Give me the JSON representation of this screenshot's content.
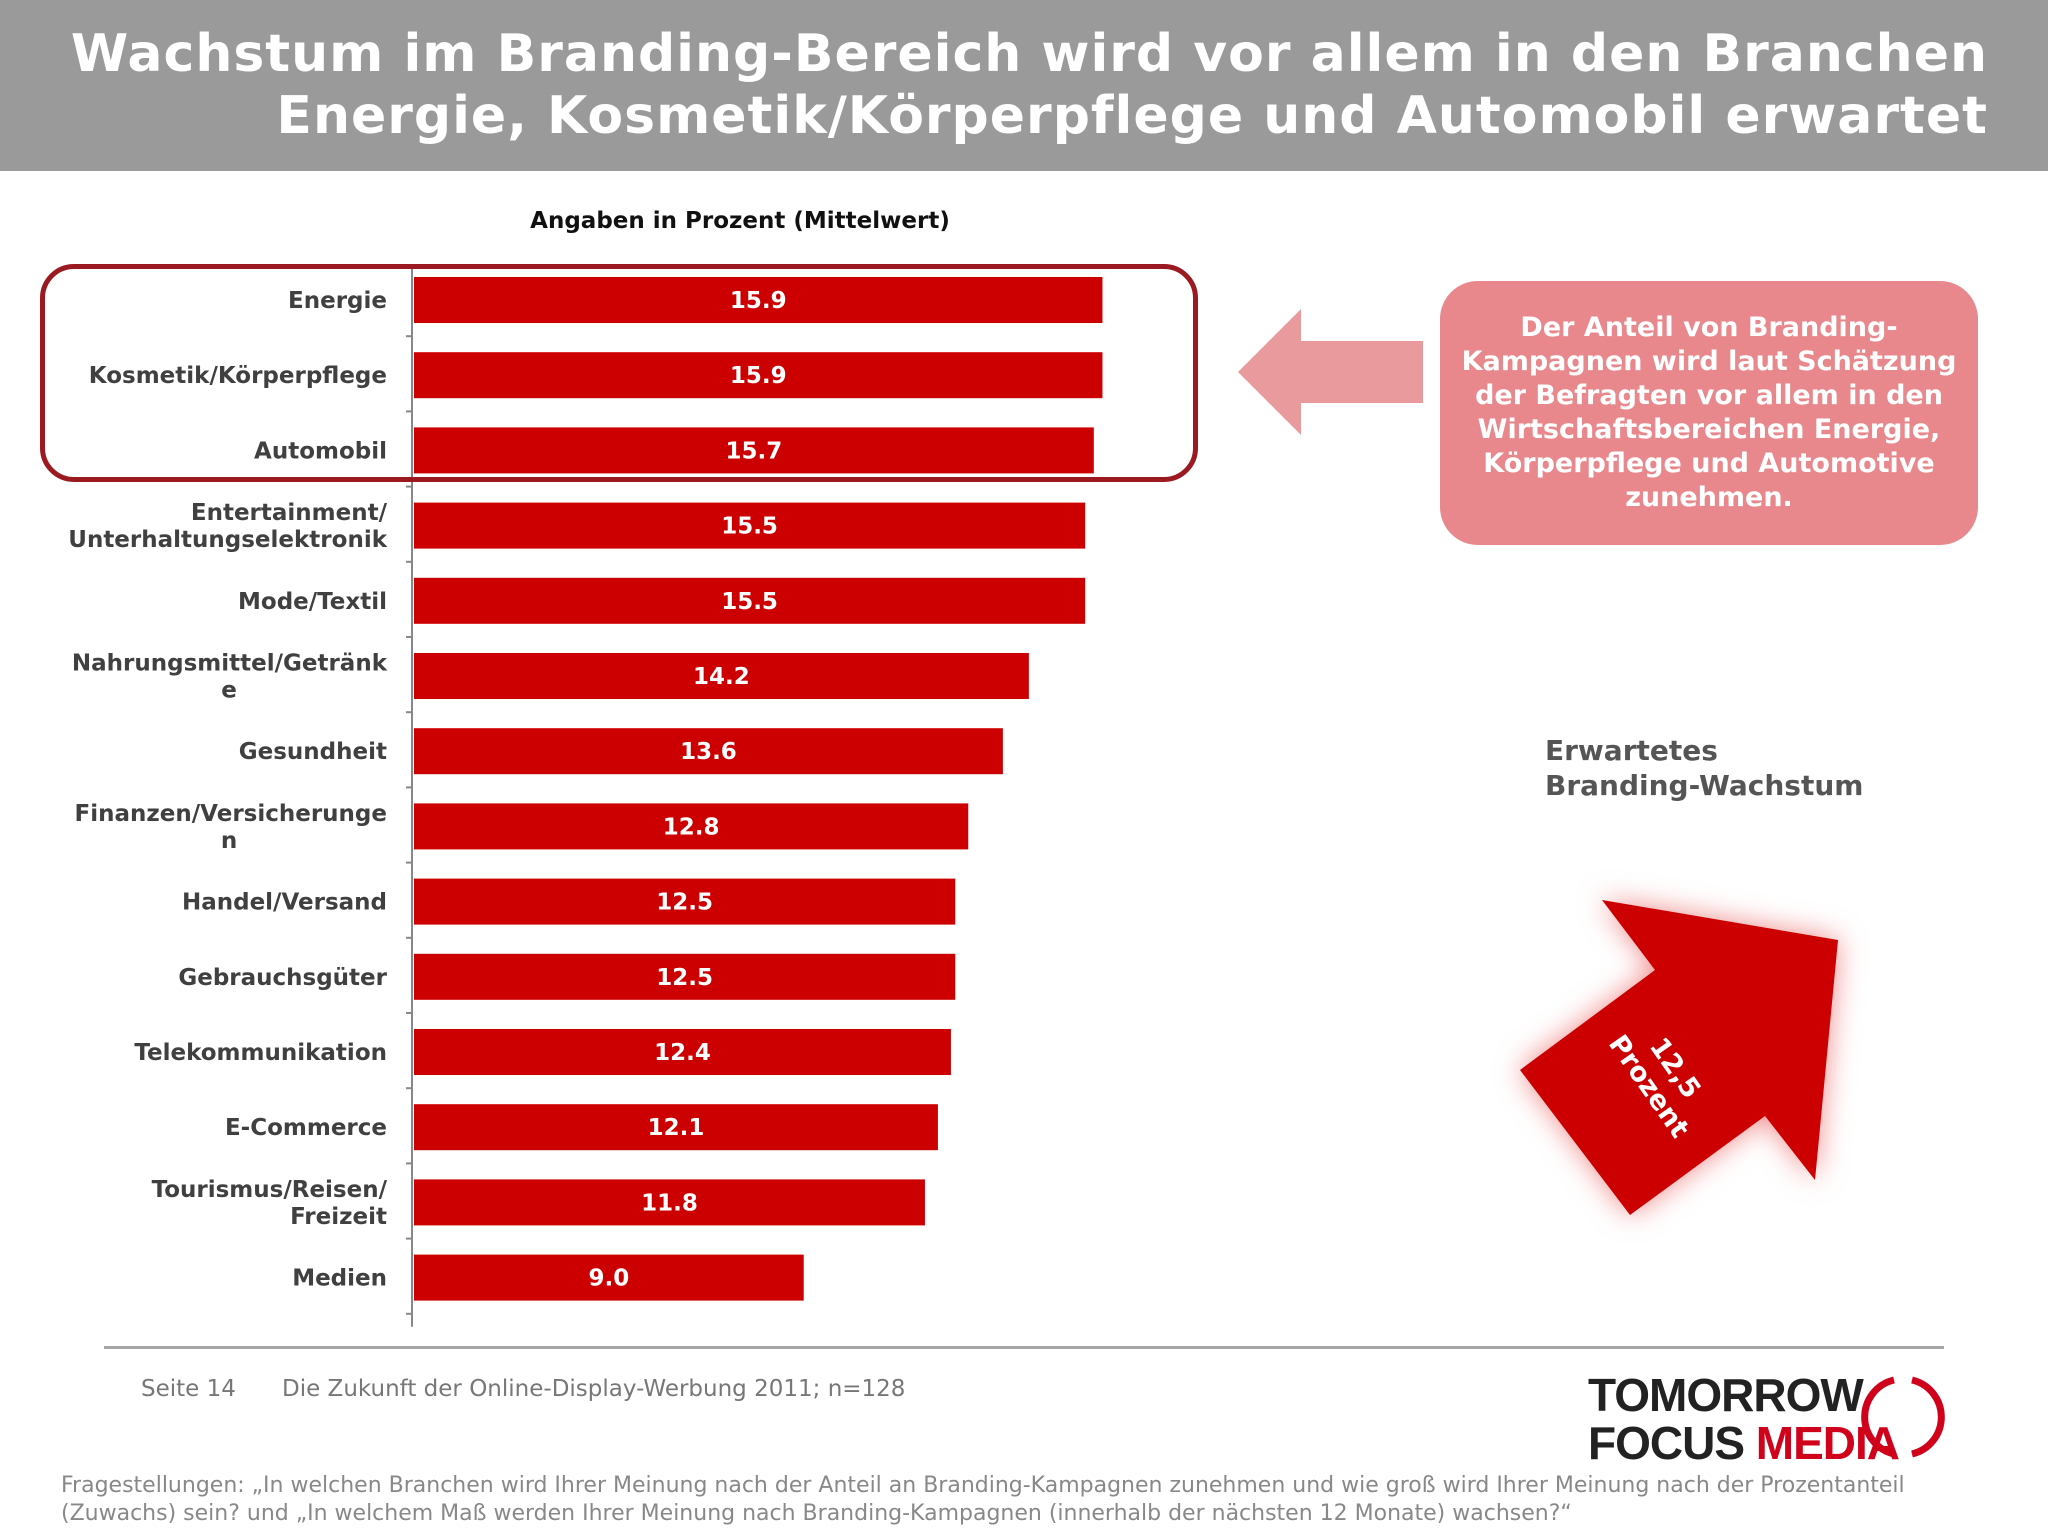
{
  "header": {
    "title_line1": "Wachstum im Branding-Bereich wird vor allem in den Branchen",
    "title_line2": "Energie, Kosmetik/Körperpflege und Automobil erwartet"
  },
  "chart_subtitle": "Angaben in Prozent (Mittelwert)",
  "chart_data": {
    "type": "bar",
    "orientation": "horizontal",
    "subtitle": "Angaben in Prozent (Mittelwert)",
    "categories": [
      [
        "Energie"
      ],
      [
        "Kosmetik/Körperpflege"
      ],
      [
        "Automobil"
      ],
      [
        "Entertainment/",
        "Unterhaltungselektronik"
      ],
      [
        "Mode/Textil"
      ],
      [
        "Nahrungsmittel/Getränk",
        "e"
      ],
      [
        "Gesundheit"
      ],
      [
        "Finanzen/Versicherunge",
        "n"
      ],
      [
        "Handel/Versand"
      ],
      [
        "Gebrauchsgüter"
      ],
      [
        "Telekommunikation"
      ],
      [
        "E-Commerce"
      ],
      [
        "Tourismus/Reisen/",
        "Freizeit"
      ],
      [
        "Medien"
      ]
    ],
    "values": [
      15.9,
      15.9,
      15.7,
      15.5,
      15.5,
      14.2,
      13.6,
      12.8,
      12.5,
      12.5,
      12.4,
      12.1,
      11.8,
      9.0
    ],
    "value_labels": [
      "15.9",
      "15.9",
      "15.7",
      "15.5",
      "15.5",
      "14.2",
      "13.6",
      "12.8",
      "12.5",
      "12.5",
      "12.4",
      "12.1",
      "11.8",
      "9.0"
    ],
    "bar_color": "#cc0000",
    "highlighted": [
      "Energie",
      "Kosmetik/Körperpflege",
      "Automobil"
    ],
    "highlight_color": "#9b1a22",
    "xlim": [
      0,
      16.5
    ],
    "grid": false,
    "legend": "none"
  },
  "callout": {
    "text": "Der Anteil von Branding-Kampagnen wird laut Schätzung der Befragten vor allem in den Wirtschaftsbereichen Energie, Körperpflege und Automotive zunehmen.",
    "bg_color": "#e8888c"
  },
  "growth": {
    "title": "Erwartetes\nBranding-Wachstum",
    "arrow_value": "12,5",
    "arrow_unit": "Prozent",
    "arrow_color": "#cc0000"
  },
  "footer": {
    "page": "Seite 14",
    "source": "Die Zukunft der Online-Display-Werbung 2011; n=128",
    "logo_line1": "TOMORROW",
    "logo_line2a": "FOCUS ",
    "logo_line2b": "MEDIA",
    "question": "Fragestellungen: „In welchen Branchen wird Ihrer Meinung nach der Anteil an Branding-Kampagnen zunehmen und wie groß wird Ihrer Meinung nach der Prozentanteil (Zuwachs) sein? und „In welchem Maß werden Ihrer Meinung nach Branding-Kampagnen (innerhalb der nächsten 12 Monate) wachsen?“"
  }
}
